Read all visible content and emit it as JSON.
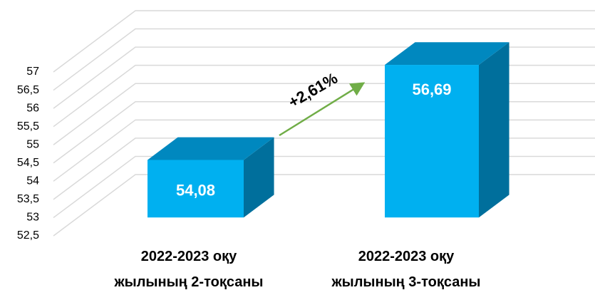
{
  "chart_data": {
    "type": "bar3d",
    "categories": [
      "2022-2023 оқу\nжылының 2-тоқсаны",
      "2022-2023 оқу\nжылының 3-тоқсаны"
    ],
    "values": [
      54.08,
      56.69
    ],
    "value_labels": [
      "54,08",
      "56,69"
    ],
    "color": "#00b0f0",
    "annotation": "+2,61%",
    "annotation_color": "#70ad47",
    "ylim": [
      52.5,
      57
    ],
    "yticks": [
      {
        "value": 52.5,
        "label": "52,5"
      },
      53,
      {
        "value": 53.5,
        "label": "53,5"
      },
      54,
      {
        "value": 54.5,
        "label": "54,5"
      },
      55,
      {
        "value": 55.5,
        "label": "55,5"
      },
      56,
      {
        "value": 56.5,
        "label": "56,5"
      },
      57
    ],
    "grid": true
  }
}
